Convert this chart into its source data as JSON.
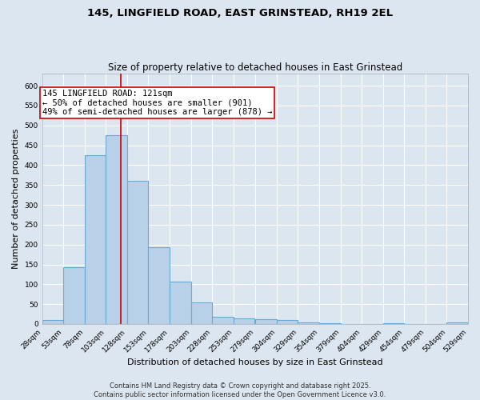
{
  "title1": "145, LINGFIELD ROAD, EAST GRINSTEAD, RH19 2EL",
  "title2": "Size of property relative to detached houses in East Grinstead",
  "xlabel": "Distribution of detached houses by size in East Grinstead",
  "ylabel": "Number of detached properties",
  "bin_labels": [
    "28sqm",
    "53sqm",
    "78sqm",
    "103sqm",
    "128sqm",
    "153sqm",
    "178sqm",
    "203sqm",
    "228sqm",
    "253sqm",
    "279sqm",
    "304sqm",
    "329sqm",
    "354sqm",
    "379sqm",
    "404sqm",
    "429sqm",
    "454sqm",
    "479sqm",
    "504sqm",
    "529sqm"
  ],
  "bin_edges": [
    28,
    53,
    78,
    103,
    128,
    153,
    178,
    203,
    228,
    253,
    279,
    304,
    329,
    354,
    379,
    404,
    429,
    454,
    479,
    504,
    529
  ],
  "bar_values": [
    10,
    143,
    425,
    475,
    360,
    193,
    107,
    55,
    18,
    15,
    13,
    10,
    5,
    3,
    0,
    0,
    3,
    0,
    0,
    5
  ],
  "bar_color": "#b8d0e8",
  "bar_edgecolor": "#6aaad4",
  "bar_linewidth": 0.8,
  "vline_x": 121,
  "vline_color": "#cc0000",
  "vline_linewidth": 1.2,
  "annotation_text": "145 LINGFIELD ROAD: 121sqm\n← 50% of detached houses are smaller (901)\n49% of semi-detached houses are larger (878) →",
  "annotation_fontsize": 7.5,
  "annotation_box_color": "white",
  "annotation_box_edgecolor": "#cc0000",
  "ylim": [
    0,
    630
  ],
  "yticks": [
    0,
    50,
    100,
    150,
    200,
    250,
    300,
    350,
    400,
    450,
    500,
    550,
    600
  ],
  "background_color": "#dce6f0",
  "grid_color": "white",
  "title1_fontsize": 9.5,
  "title2_fontsize": 8.5,
  "xlabel_fontsize": 8,
  "ylabel_fontsize": 8,
  "tick_fontsize": 6.5,
  "footer_text": "Contains HM Land Registry data © Crown copyright and database right 2025.\nContains public sector information licensed under the Open Government Licence v3.0.",
  "footer_fontsize": 6
}
